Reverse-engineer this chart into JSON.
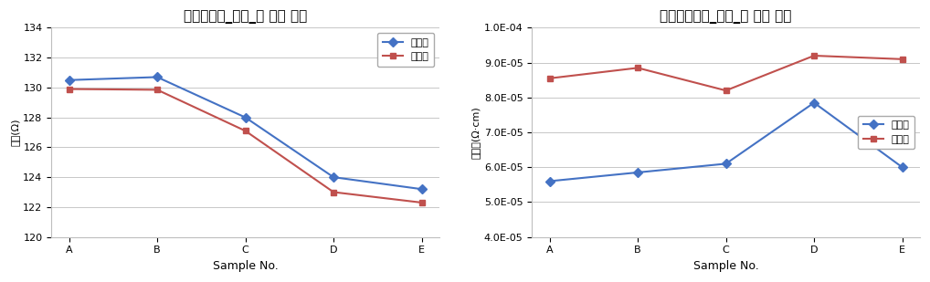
{
  "chart1": {
    "title": "저항균일도_완품_내 침습 시험",
    "xlabel": "Sample No.",
    "ylabel": "저항(Ω)",
    "categories": [
      "A",
      "B",
      "C",
      "D",
      "E"
    ],
    "series": [
      {
        "name": "시험전",
        "values": [
          130.5,
          130.7,
          128.0,
          124.0,
          123.2
        ],
        "color": "#4472C4",
        "marker": "D"
      },
      {
        "name": "시험후",
        "values": [
          129.9,
          129.85,
          127.1,
          123.0,
          122.3
        ],
        "color": "#C0504D",
        "marker": "s"
      }
    ],
    "ylim": [
      120,
      134
    ],
    "yticks": [
      120,
      122,
      124,
      126,
      128,
      130,
      132,
      134
    ],
    "background_color": "#FFFFFF"
  },
  "chart2": {
    "title": "비저항균일도_완품_내 침습 시험",
    "xlabel": "Sample No.",
    "ylabel": "비저항(Ω·cm)",
    "categories": [
      "A",
      "B",
      "C",
      "D",
      "E"
    ],
    "series": [
      {
        "name": "시험전",
        "values": [
          5.6e-05,
          5.85e-05,
          6.1e-05,
          7.85e-05,
          6e-05
        ],
        "color": "#4472C4",
        "marker": "D"
      },
      {
        "name": "시험후",
        "values": [
          8.55e-05,
          8.85e-05,
          8.2e-05,
          9.2e-05,
          9.1e-05
        ],
        "color": "#C0504D",
        "marker": "s"
      }
    ],
    "ylim": [
      4e-05,
      0.0001
    ],
    "yticks": [
      4e-05,
      5e-05,
      6e-05,
      7e-05,
      8e-05,
      9e-05,
      0.0001
    ],
    "background_color": "#FFFFFF"
  }
}
